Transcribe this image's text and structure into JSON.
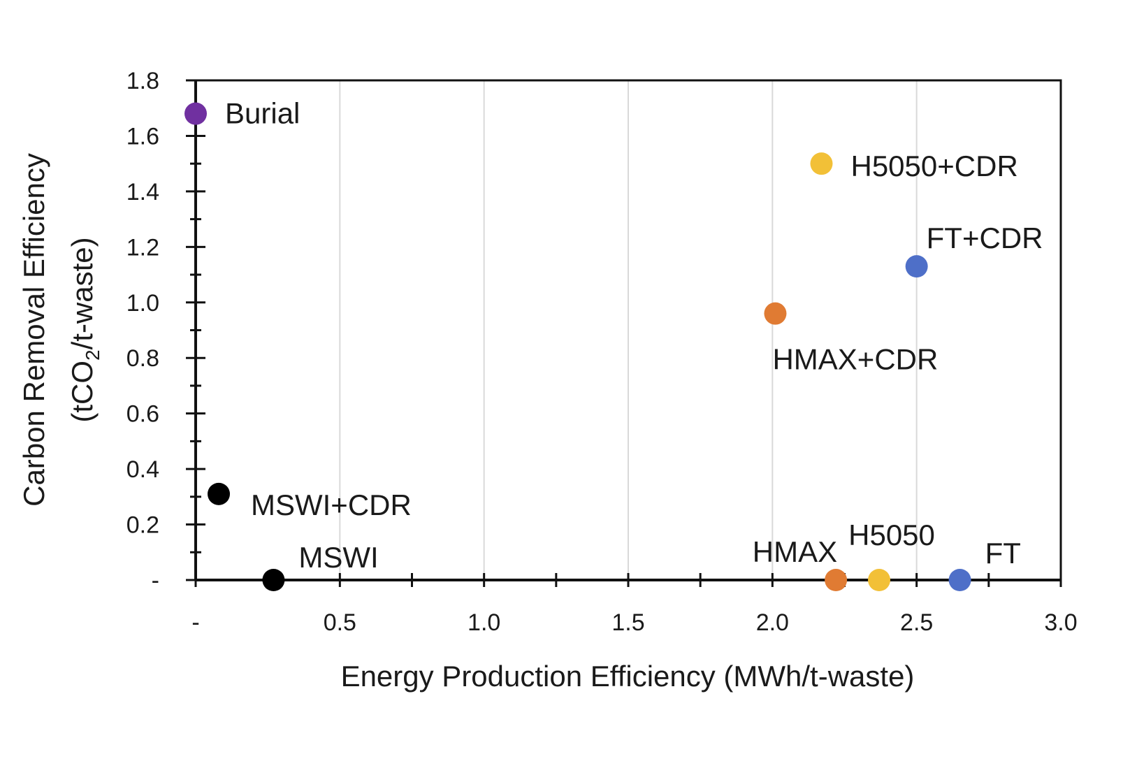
{
  "chart_data": {
    "type": "scatter",
    "title": "",
    "xlabel": "Energy Production Efficiency (MWh/t-waste)",
    "ylabel": {
      "line1": "Carbon Removal Efficiency",
      "line2_prefix": "(tCO",
      "line2_subscript": "2",
      "line2_suffix": "/t-waste)"
    },
    "xlim": [
      0,
      3.0
    ],
    "ylim": [
      0,
      1.8
    ],
    "x_ticks": [
      {
        "value": 0,
        "label": "-"
      },
      {
        "value": 0.5,
        "label": "0.5"
      },
      {
        "value": 1.0,
        "label": "1.0"
      },
      {
        "value": 1.5,
        "label": "1.5"
      },
      {
        "value": 2.0,
        "label": "2.0"
      },
      {
        "value": 2.5,
        "label": "2.5"
      },
      {
        "value": 3.0,
        "label": "3.0"
      }
    ],
    "y_ticks": [
      {
        "value": 0,
        "label": "-"
      },
      {
        "value": 0.2,
        "label": "0.2"
      },
      {
        "value": 0.4,
        "label": "0.4"
      },
      {
        "value": 0.6,
        "label": "0.6"
      },
      {
        "value": 0.8,
        "label": "0.8"
      },
      {
        "value": 1.0,
        "label": "1.0"
      },
      {
        "value": 1.2,
        "label": "1.2"
      },
      {
        "value": 1.4,
        "label": "1.4"
      },
      {
        "value": 1.6,
        "label": "1.6"
      },
      {
        "value": 1.8,
        "label": "1.8"
      }
    ],
    "grid": {
      "vertical": true,
      "horizontal": false
    },
    "points": [
      {
        "name": "Burial",
        "x": 0.0,
        "y": 1.68,
        "color": "#7030a0",
        "label_position": "right"
      },
      {
        "name": "MSWI+CDR",
        "x": 0.08,
        "y": 0.31,
        "color": "#000000",
        "label_position": "right"
      },
      {
        "name": "MSWI",
        "x": 0.27,
        "y": 0.0,
        "color": "#000000",
        "label_position": "upper-right"
      },
      {
        "name": "H5050+CDR",
        "x": 2.17,
        "y": 1.5,
        "color": "#f2c037",
        "label_position": "right"
      },
      {
        "name": "FT+CDR",
        "x": 2.5,
        "y": 1.13,
        "color": "#4e6fc8",
        "label_position": "upper-right"
      },
      {
        "name": "HMAX+CDR",
        "x": 2.01,
        "y": 0.96,
        "color": "#e07b33",
        "label_position": "below"
      },
      {
        "name": "HMAX",
        "x": 2.22,
        "y": 0.0,
        "color": "#e07b33",
        "label_position": "upper-left"
      },
      {
        "name": "H5050",
        "x": 2.37,
        "y": 0.0,
        "color": "#f2c037",
        "label_position": "above"
      },
      {
        "name": "FT",
        "x": 2.65,
        "y": 0.0,
        "color": "#4e6fc8",
        "label_position": "upper-right"
      }
    ]
  }
}
